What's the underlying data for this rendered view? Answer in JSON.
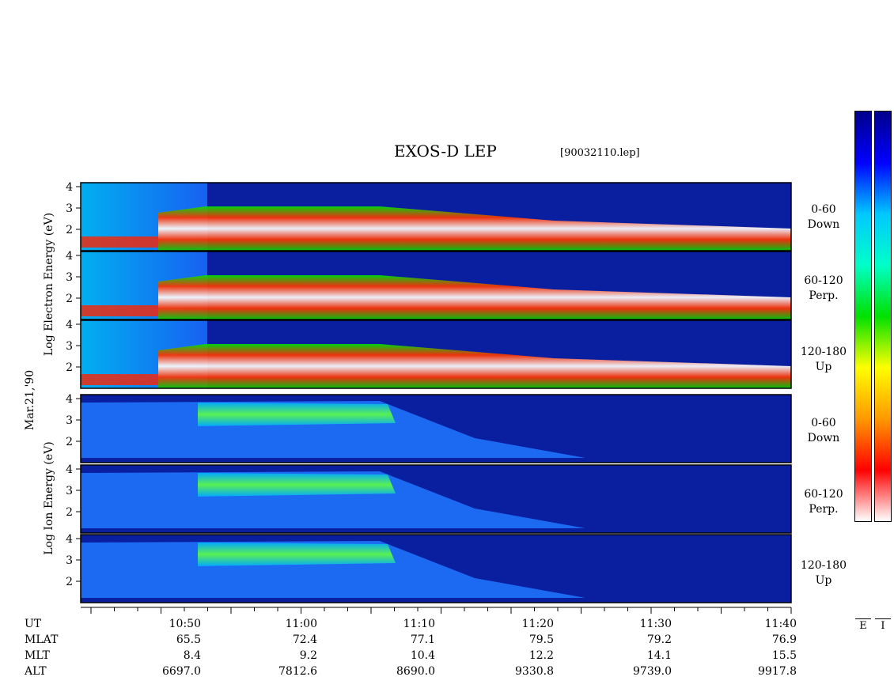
{
  "header": {
    "title": "EXOS-D LEP",
    "file": "[90032110.lep]"
  },
  "left_labels": {
    "electron_axis": "Log  Electron  Energy (eV)",
    "date": "Mar.21,'90",
    "ion_axis": "Log  Ion  Energy (eV)"
  },
  "colorbars": {
    "electron_label": "E",
    "ion_label": "I"
  },
  "chart_data": {
    "type": "heatmap",
    "title": "EXOS-D LEP",
    "x_axis": {
      "ticks": [
        "10:50",
        "11:00",
        "11:10",
        "11:20",
        "11:30",
        "11:40"
      ],
      "row_labels": [
        "UT",
        "MLAT",
        "MLT",
        "ALT"
      ],
      "MLAT": [
        "65.5",
        "72.4",
        "77.1",
        "79.5",
        "79.2",
        "76.9"
      ],
      "MLT": [
        "8.4",
        "9.2",
        "10.4",
        "12.2",
        "14.1",
        "15.5"
      ],
      "ALT": [
        "6697.0",
        "7812.6",
        "8690.0",
        "9330.8",
        "9739.0",
        "9917.8"
      ]
    },
    "y_ticks": [
      "4",
      "3",
      "2"
    ],
    "panels": [
      {
        "species": "Electron",
        "pitch": "0-60",
        "direction": "Down"
      },
      {
        "species": "Electron",
        "pitch": "60-120",
        "direction": "Perp."
      },
      {
        "species": "Electron",
        "pitch": "120-180",
        "direction": "Up"
      },
      {
        "species": "Ion",
        "pitch": "0-60",
        "direction": "Down"
      },
      {
        "species": "Ion",
        "pitch": "60-120",
        "direction": "Perp."
      },
      {
        "species": "Ion",
        "pitch": "120-180",
        "direction": "Up"
      }
    ],
    "colors": {
      "background": "#0a1ea0",
      "scale": [
        "#00008b",
        "#0000ff",
        "#00c8ff",
        "#00ffc8",
        "#00e000",
        "#ffff00",
        "#ff9900",
        "#ff0000",
        "#ffffff"
      ]
    }
  }
}
